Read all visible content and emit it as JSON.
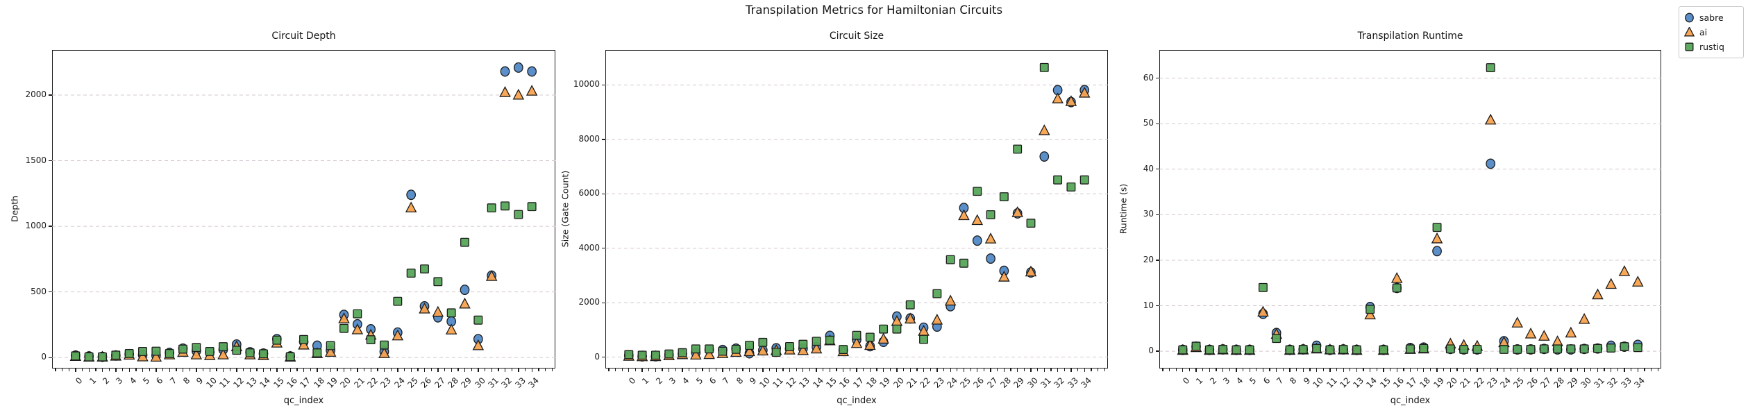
{
  "figure": {
    "title": "Transpilation Metrics for Hamiltonian Circuits"
  },
  "legend": {
    "position": "upper-right-outside",
    "items": [
      {
        "label": "sabre",
        "marker": "circle",
        "color": "#5289c7"
      },
      {
        "label": "ai",
        "marker": "triangle",
        "color": "#f9a34f"
      },
      {
        "label": "rustiq",
        "marker": "square",
        "color": "#57a65a"
      }
    ]
  },
  "chart_data": [
    {
      "type": "scatter",
      "title": "Circuit Depth",
      "xlabel": "qc_index",
      "ylabel": "Depth",
      "grid": "horizontal-dashed",
      "x": [
        0,
        1,
        2,
        3,
        4,
        5,
        6,
        7,
        8,
        9,
        10,
        11,
        12,
        13,
        14,
        15,
        16,
        17,
        18,
        19,
        20,
        21,
        22,
        23,
        24,
        25,
        26,
        27,
        28,
        29,
        30,
        31,
        32,
        33,
        34
      ],
      "xlim": [
        -1.75,
        35.75
      ],
      "ylim": [
        -84,
        2344
      ],
      "yticks": [
        0,
        500,
        1000,
        1500,
        2000
      ],
      "series": [
        {
          "name": "sabre",
          "marker": "circle",
          "color": "#5289c7",
          "values": [
            15,
            8,
            5,
            15,
            25,
            20,
            15,
            35,
            68,
            50,
            40,
            60,
            99,
            40,
            30,
            140,
            8,
            120,
            90,
            55,
            325,
            253,
            215,
            45,
            190,
            1240,
            390,
            306,
            275,
            516,
            140,
            624,
            2180,
            2210,
            2180
          ]
        },
        {
          "name": "ai",
          "marker": "triangle",
          "color": "#f9a34f",
          "values": [
            8,
            3,
            3,
            10,
            18,
            5,
            3,
            20,
            40,
            20,
            15,
            20,
            82,
            20,
            15,
            110,
            3,
            95,
            30,
            40,
            295,
            211,
            170,
            30,
            165,
            1140,
            370,
            345,
            210,
            408,
            90,
            618,
            2020,
            2000,
            2030
          ]
        },
        {
          "name": "rustiq",
          "marker": "square",
          "color": "#57a65a",
          "values": [
            12,
            5,
            5,
            18,
            30,
            46,
            48,
            30,
            64,
            76,
            46,
            82,
            55,
            35,
            28,
            132,
            6,
            137,
            35,
            90,
            222,
            333,
            135,
            95,
            428,
            643,
            675,
            578,
            340,
            878,
            285,
            1140,
            1155,
            1090,
            1150
          ]
        }
      ]
    },
    {
      "type": "scatter",
      "title": "Circuit Size",
      "xlabel": "qc_index",
      "ylabel": "Size (Gate Count)",
      "grid": "horizontal-dashed",
      "x": [
        0,
        1,
        2,
        3,
        4,
        5,
        6,
        7,
        8,
        9,
        10,
        11,
        12,
        13,
        14,
        15,
        16,
        17,
        18,
        19,
        20,
        21,
        22,
        23,
        24,
        25,
        26,
        27,
        28,
        29,
        30,
        31,
        32,
        33,
        34
      ],
      "xlim": [
        -1.75,
        35.75
      ],
      "ylim": [
        -420,
        11285
      ],
      "yticks": [
        0,
        2000,
        4000,
        6000,
        8000,
        10000
      ],
      "series": [
        {
          "name": "sabre",
          "marker": "circle",
          "color": "#5289c7",
          "values": [
            60,
            25,
            30,
            80,
            120,
            160,
            270,
            260,
            310,
            140,
            250,
            325,
            300,
            310,
            370,
            780,
            250,
            640,
            400,
            560,
            1490,
            1420,
            1080,
            1120,
            1870,
            5480,
            4280,
            3620,
            3170,
            5280,
            3110,
            7370,
            9810,
            9370,
            9810
          ]
        },
        {
          "name": "ai",
          "marker": "triangle",
          "color": "#f9a34f",
          "values": [
            30,
            15,
            20,
            50,
            90,
            75,
            95,
            130,
            175,
            200,
            225,
            240,
            260,
            240,
            300,
            600,
            200,
            500,
            430,
            660,
            1310,
            1400,
            950,
            1360,
            2060,
            5200,
            5020,
            4340,
            2940,
            5310,
            3130,
            8320,
            9490,
            9390,
            9700
          ]
        },
        {
          "name": "rustiq",
          "marker": "square",
          "color": "#57a65a",
          "values": [
            90,
            70,
            70,
            115,
            160,
            300,
            300,
            215,
            285,
            430,
            540,
            175,
            385,
            470,
            580,
            620,
            280,
            800,
            730,
            1030,
            1030,
            1920,
            650,
            2330,
            3580,
            3450,
            6090,
            5230,
            5890,
            7640,
            4920,
            10640,
            6510,
            6250,
            6510
          ]
        }
      ]
    },
    {
      "type": "scatter",
      "title": "Transpilation Runtime",
      "xlabel": "qc_index",
      "ylabel": "Runtime (s)",
      "grid": "horizontal-dashed",
      "x": [
        0,
        1,
        2,
        3,
        4,
        5,
        6,
        7,
        8,
        9,
        10,
        11,
        12,
        13,
        14,
        15,
        16,
        17,
        18,
        19,
        20,
        21,
        22,
        23,
        24,
        25,
        26,
        27,
        28,
        29,
        30,
        31,
        32,
        33,
        34
      ],
      "xlim": [
        -1.75,
        35.75
      ],
      "ylim": [
        -3.8,
        66.2
      ],
      "yticks": [
        0,
        10,
        20,
        30,
        40,
        50,
        60
      ],
      "series": [
        {
          "name": "sabre",
          "marker": "circle",
          "color": "#5289c7",
          "values": [
            0.3,
            1.0,
            0.3,
            0.4,
            0.3,
            0.3,
            8.2,
            4.0,
            0.3,
            0.4,
            1.2,
            0.3,
            0.4,
            0.3,
            9.7,
            0.3,
            13.9,
            0.7,
            0.8,
            22.0,
            0.5,
            0.4,
            0.4,
            41.2,
            2.2,
            0.4,
            0.4,
            0.5,
            0.4,
            0.4,
            0.5,
            0.6,
            1.2,
            1.0,
            1.4
          ]
        },
        {
          "name": "ai",
          "marker": "triangle",
          "color": "#f9a34f",
          "values": [
            0.2,
            0.8,
            0.2,
            0.3,
            0.2,
            0.2,
            8.6,
            3.7,
            0.2,
            0.3,
            0.5,
            0.3,
            0.3,
            0.2,
            8.0,
            0.2,
            16.0,
            0.4,
            0.5,
            24.7,
            1.6,
            1.3,
            1.1,
            50.8,
            1.9,
            6.2,
            3.8,
            3.3,
            2.1,
            4.0,
            7.0,
            12.4,
            14.7,
            17.5,
            15.2
          ]
        },
        {
          "name": "rustiq",
          "marker": "square",
          "color": "#57a65a",
          "values": [
            0.3,
            1.1,
            0.3,
            0.4,
            0.3,
            0.3,
            14.0,
            2.8,
            0.3,
            0.4,
            0.6,
            0.3,
            0.4,
            0.3,
            9.2,
            0.3,
            13.9,
            0.5,
            0.6,
            27.2,
            0.5,
            0.4,
            0.4,
            62.3,
            0.4,
            0.4,
            0.4,
            0.5,
            0.5,
            0.5,
            0.5,
            0.6,
            0.7,
            1.0,
            0.8
          ]
        }
      ]
    }
  ],
  "style": {
    "grid_color": "#d3c8d0",
    "spine_color": "#1b1b1b",
    "marker_edge": "#1c1c1c"
  }
}
